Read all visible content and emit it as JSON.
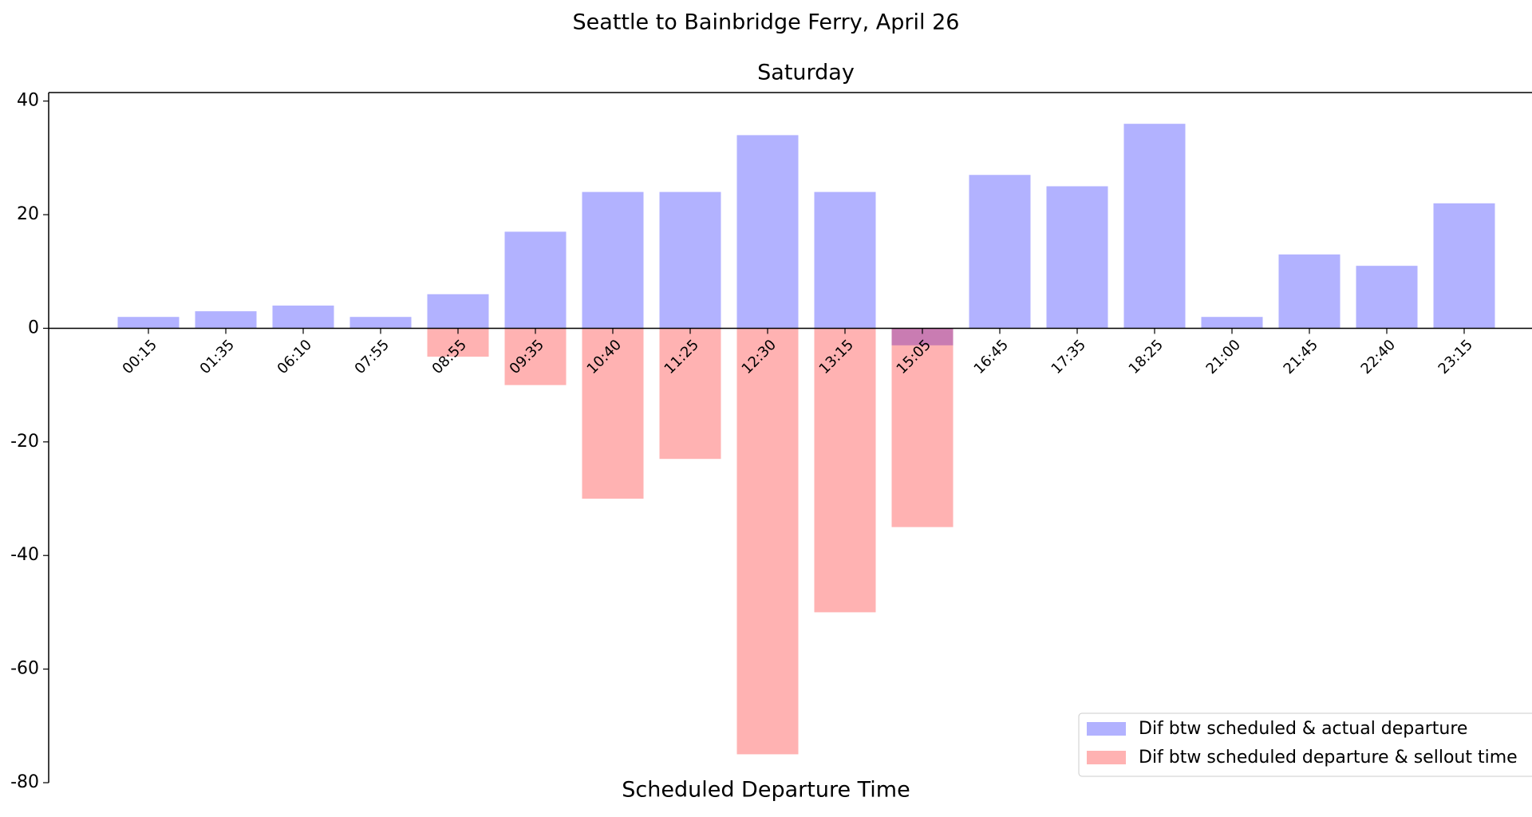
{
  "chart_data": {
    "type": "bar",
    "title": "Seattle to Bainbridge Ferry, April 26",
    "subtitle": "Saturday",
    "x_label": "Scheduled Departure Time",
    "categories": [
      "00:15",
      "01:35",
      "06:10",
      "07:55",
      "08:55",
      "09:35",
      "10:40",
      "11:25",
      "12:30",
      "13:15",
      "15:05",
      "16:45",
      "17:35",
      "18:25",
      "21:00",
      "21:45",
      "22:40",
      "23:15"
    ],
    "series": [
      {
        "name": "Dif btw scheduled & actual departure",
        "color": "#0000ff",
        "values": [
          2,
          3,
          4,
          2,
          6,
          17,
          24,
          24,
          34,
          24,
          -3,
          27,
          25,
          36,
          2,
          13,
          11,
          22
        ]
      },
      {
        "name": "Dif btw scheduled departure & sellout time",
        "color": "#ff0000",
        "values": [
          null,
          null,
          null,
          null,
          -5,
          -10,
          -30,
          -23,
          -75,
          -50,
          -35,
          null,
          null,
          null,
          null,
          null,
          null,
          null
        ]
      }
    ],
    "ylim": [
      -80,
      41.5
    ],
    "yticks": [
      -80,
      -60,
      -40,
      -20,
      0,
      20,
      40
    ],
    "legend": "lower right"
  }
}
